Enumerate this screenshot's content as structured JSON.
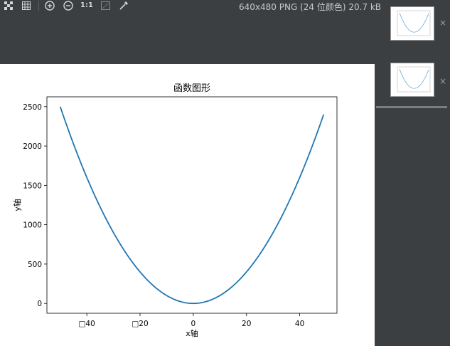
{
  "toolbar": {
    "icons": [
      "checkerboard-icon",
      "grid-icon",
      "zoom-in-icon",
      "zoom-out-icon",
      "actual-size-icon",
      "fit-window-icon",
      "color-picker-icon"
    ],
    "actual_size_label": "1:1",
    "image_info": "640x480 PNG (24 位颜色) 20.7 kB"
  },
  "thumbnails": [
    {
      "name": "thumbnail-1",
      "close": "×"
    },
    {
      "name": "thumbnail-2",
      "close": "×"
    }
  ],
  "chart_data": {
    "type": "line",
    "title": "函数图形",
    "xlabel": "x轴",
    "ylabel": "y轴",
    "x_tick_labels": [
      "□40",
      "□20",
      "0",
      "20",
      "40"
    ],
    "x_ticks": [
      -40,
      -20,
      0,
      20,
      40
    ],
    "y_ticks": [
      0,
      500,
      1000,
      1500,
      2000,
      2500
    ],
    "y_tick_labels": [
      "0",
      "500",
      "1000",
      "1500",
      "2000",
      "2500"
    ],
    "xlim": [
      -55,
      54
    ],
    "ylim": [
      -125,
      2625
    ],
    "series": [
      {
        "function": "x^2",
        "x_start": -50,
        "x_end": 49,
        "color": "#1f77b4"
      }
    ]
  }
}
